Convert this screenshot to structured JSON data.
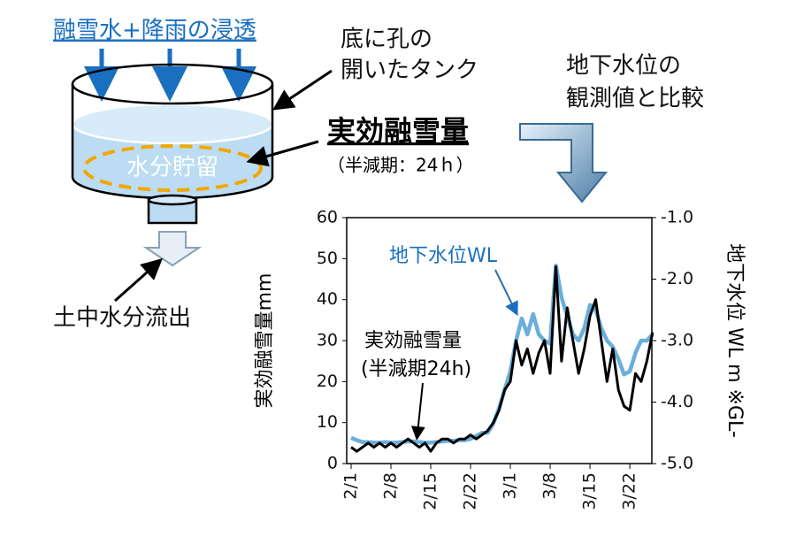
{
  "diagram": {
    "infiltration": "融雪水+降雨の浸透",
    "tank_line1": "底に孔の",
    "tank_line2": "開いたタンク",
    "storage": "水分貯留",
    "effective_title": "実効融雪量",
    "half_life": "（半減期：24ｈ）",
    "compare_line1": "地下水位の",
    "compare_line2": "観測値と比較",
    "outflow": "土中水分流出"
  },
  "chart_data": {
    "type": "line",
    "categories": [
      "2/1",
      null,
      null,
      null,
      null,
      null,
      null,
      "2/8",
      null,
      null,
      null,
      null,
      null,
      null,
      "2/15",
      null,
      null,
      null,
      null,
      null,
      null,
      "2/22",
      null,
      null,
      null,
      null,
      null,
      null,
      "3/1",
      null,
      null,
      null,
      null,
      null,
      null,
      "3/8",
      null,
      null,
      null,
      null,
      null,
      null,
      "3/15",
      null,
      null,
      null,
      null,
      null,
      null,
      "3/22",
      null,
      null,
      null,
      null
    ],
    "series": [
      {
        "name": "実効融雪量",
        "color": "#000000",
        "values": [
          4,
          3,
          4,
          5,
          4,
          5,
          4,
          5,
          4,
          5,
          6,
          5,
          4,
          5,
          3,
          5,
          6,
          6,
          5,
          6,
          6,
          7,
          6,
          7,
          8,
          10,
          13,
          18,
          20,
          30,
          24,
          28,
          22,
          27,
          30,
          22,
          48,
          25,
          38,
          30,
          22,
          28,
          36,
          40,
          30,
          20,
          28,
          18,
          14,
          13,
          22,
          20,
          25,
          32
        ]
      },
      {
        "name": "地下水位WL",
        "color": "#6aaedc",
        "axis": "y2",
        "values": [
          -4.58,
          -4.62,
          -4.65,
          -4.65,
          -4.66,
          -4.66,
          -4.65,
          -4.66,
          -4.66,
          -4.65,
          -4.64,
          -4.64,
          -4.65,
          -4.66,
          -4.66,
          -4.65,
          -4.64,
          -4.63,
          -4.63,
          -4.62,
          -4.62,
          -4.6,
          -4.55,
          -4.5,
          -4.5,
          -4.35,
          -4.1,
          -3.8,
          -3.5,
          -3.0,
          -2.64,
          -2.9,
          -2.57,
          -2.9,
          -3.0,
          -3.05,
          -1.78,
          -2.3,
          -2.6,
          -2.9,
          -3.0,
          -2.8,
          -2.42,
          -2.5,
          -2.8,
          -3.0,
          -3.1,
          -3.3,
          -3.55,
          -3.5,
          -3.2,
          -3.0,
          -3.0,
          -2.9
        ]
      }
    ],
    "series_note": "(半減期24h)",
    "ylabel": "実効融雪量mm",
    "y2label": "地下水位 WL m ※GL-",
    "ylim": [
      0,
      60
    ],
    "yticks": [
      0,
      10,
      20,
      30,
      40,
      50,
      60
    ],
    "y2lim": [
      -5,
      -1
    ],
    "y2ticks": [
      {
        "value": -1,
        "label": "-1.0"
      },
      {
        "value": -2,
        "label": "-2.0"
      },
      {
        "value": -3,
        "label": "-3.0"
      },
      {
        "value": -4,
        "label": "-4.0"
      },
      {
        "value": -5,
        "label": "-5.0"
      }
    ]
  }
}
